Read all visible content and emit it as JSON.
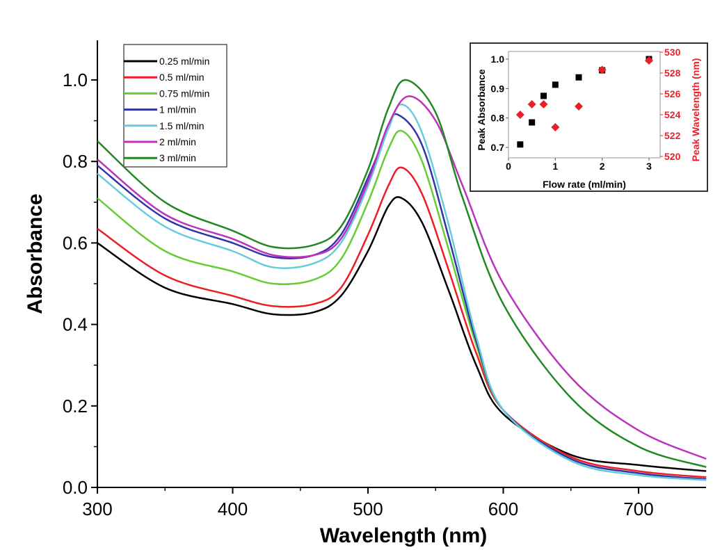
{
  "chart_data": [
    {
      "type": "line",
      "title": "",
      "xlabel": "Wavelength (nm)",
      "ylabel": "Absorbance",
      "xlim": [
        300,
        750
      ],
      "ylim": [
        0.0,
        1.1
      ],
      "xticks": [
        "300",
        "400",
        "500",
        "600",
        "700"
      ],
      "yticks": [
        "0.0",
        "0.2",
        "0.4",
        "0.6",
        "0.8",
        "1.0"
      ],
      "grid": false,
      "legend_position": "top-left",
      "series": [
        {
          "name": "0.25 ml/min",
          "color": "#000000",
          "x": [
            300,
            350,
            400,
            430,
            460,
            480,
            500,
            515,
            525,
            540,
            560,
            580,
            600,
            650,
            700,
            750
          ],
          "y": [
            0.6,
            0.49,
            0.45,
            0.425,
            0.43,
            0.47,
            0.58,
            0.69,
            0.71,
            0.65,
            0.48,
            0.3,
            0.18,
            0.08,
            0.055,
            0.04
          ]
        },
        {
          "name": "0.5 ml/min",
          "color": "#ee1c25",
          "x": [
            300,
            350,
            400,
            430,
            460,
            480,
            500,
            515,
            525,
            540,
            560,
            580,
            600,
            650,
            700,
            750
          ],
          "y": [
            0.635,
            0.52,
            0.47,
            0.445,
            0.45,
            0.49,
            0.62,
            0.74,
            0.785,
            0.72,
            0.53,
            0.33,
            0.19,
            0.075,
            0.04,
            0.025
          ]
        },
        {
          "name": "0.75 ml/min",
          "color": "#66cc33",
          "x": [
            300,
            350,
            400,
            430,
            460,
            480,
            500,
            515,
            525,
            540,
            560,
            580,
            600,
            650,
            700,
            750
          ],
          "y": [
            0.71,
            0.58,
            0.53,
            0.5,
            0.51,
            0.56,
            0.7,
            0.83,
            0.875,
            0.8,
            0.58,
            0.35,
            0.19,
            0.07,
            0.035,
            0.02
          ]
        },
        {
          "name": "1 ml/min",
          "color": "#3333aa",
          "x": [
            300,
            350,
            400,
            430,
            460,
            480,
            500,
            515,
            522,
            540,
            560,
            580,
            600,
            650,
            700,
            750
          ],
          "y": [
            0.79,
            0.66,
            0.6,
            0.565,
            0.57,
            0.62,
            0.76,
            0.88,
            0.915,
            0.84,
            0.61,
            0.36,
            0.19,
            0.07,
            0.035,
            0.02
          ]
        },
        {
          "name": "1.5 ml/min",
          "color": "#66ccdd",
          "x": [
            300,
            350,
            400,
            430,
            460,
            480,
            500,
            515,
            525,
            540,
            560,
            580,
            600,
            650,
            700,
            750
          ],
          "y": [
            0.77,
            0.64,
            0.58,
            0.54,
            0.55,
            0.6,
            0.74,
            0.88,
            0.94,
            0.87,
            0.64,
            0.37,
            0.19,
            0.065,
            0.03,
            0.018
          ]
        },
        {
          "name": "2 ml/min",
          "color": "#bb33bb",
          "x": [
            300,
            350,
            400,
            430,
            460,
            480,
            500,
            515,
            530,
            550,
            570,
            600,
            650,
            700,
            750
          ],
          "y": [
            0.805,
            0.67,
            0.61,
            0.57,
            0.57,
            0.61,
            0.75,
            0.89,
            0.96,
            0.9,
            0.74,
            0.5,
            0.27,
            0.14,
            0.07
          ]
        },
        {
          "name": "3 ml/min",
          "color": "#228822",
          "x": [
            300,
            350,
            400,
            430,
            460,
            480,
            500,
            515,
            528,
            550,
            570,
            600,
            650,
            700,
            750
          ],
          "y": [
            0.85,
            0.7,
            0.63,
            0.59,
            0.595,
            0.64,
            0.78,
            0.93,
            1.0,
            0.92,
            0.71,
            0.45,
            0.22,
            0.1,
            0.05
          ]
        }
      ]
    },
    {
      "type": "scatter",
      "title": "",
      "xlabel": "Flow rate (ml/min)",
      "ylabel": "Peak Absorbance",
      "y2label": "Peak Wavelength (nm)",
      "xlim": [
        0,
        3.25
      ],
      "ylim": [
        0.67,
        1.02
      ],
      "y2lim": [
        519.5,
        530.3
      ],
      "xticks": [
        "0",
        "1",
        "2",
        "3"
      ],
      "yticks": [
        "0.7",
        "0.8",
        "0.9",
        "1.0"
      ],
      "y2ticks": [
        "520",
        "522",
        "524",
        "526",
        "528",
        "530"
      ],
      "grid": false,
      "position": "top-right inset",
      "series": [
        {
          "axis": "left",
          "marker": "square",
          "color": "#000000",
          "x": [
            0.25,
            0.5,
            0.75,
            1,
            1.5,
            2,
            3
          ],
          "y": [
            0.71,
            0.785,
            0.875,
            0.913,
            0.938,
            0.962,
            1.0
          ]
        },
        {
          "axis": "right",
          "marker": "diamond",
          "color": "#e8202a",
          "x": [
            0.25,
            0.5,
            0.75,
            1,
            1.5,
            2,
            3
          ],
          "y": [
            524.0,
            525.0,
            525.0,
            522.8,
            524.8,
            528.3,
            529.2
          ]
        }
      ]
    }
  ]
}
